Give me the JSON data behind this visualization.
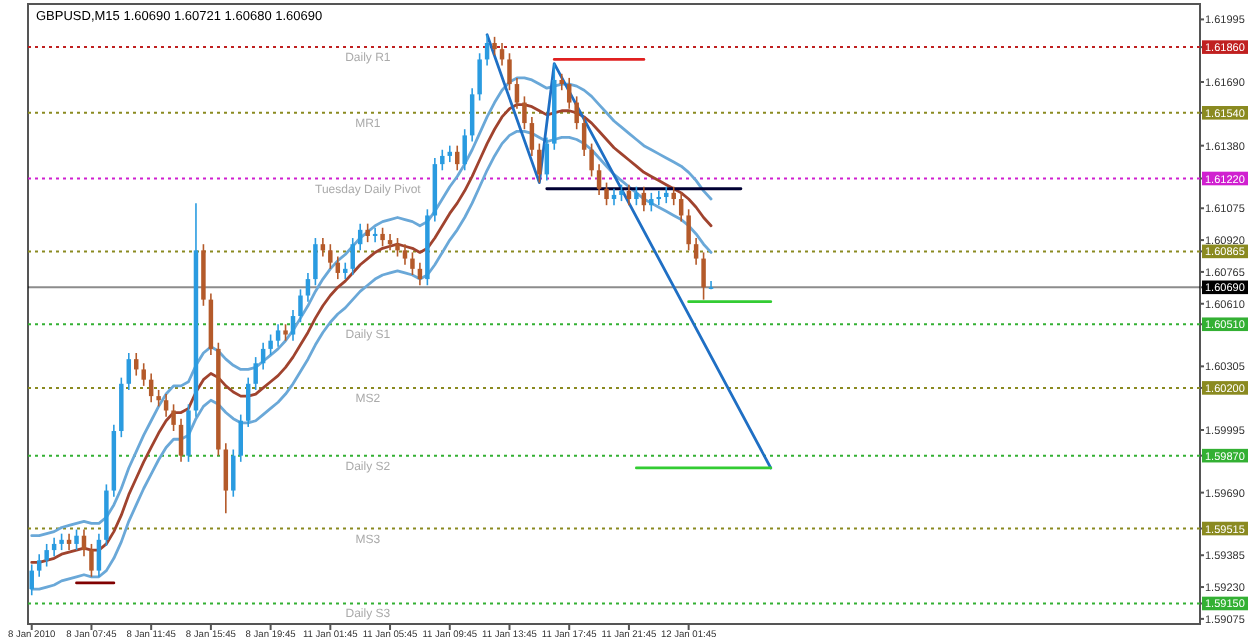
{
  "chart_data": {
    "type": "candlestick",
    "title": "GBPUSD,M15  1.60690 1.60721 1.60680 1.60690",
    "categories": [
      "8 Jan 2010",
      null,
      null,
      null,
      null,
      null,
      null,
      null,
      "8 Jan 07:45",
      null,
      null,
      null,
      null,
      null,
      null,
      null,
      "8 Jan 11:45",
      null,
      null,
      null,
      null,
      null,
      null,
      null,
      "8 Jan 15:45",
      null,
      null,
      null,
      null,
      null,
      null,
      null,
      "8 Jan 19:45",
      null,
      null,
      null,
      null,
      null,
      null,
      null,
      "11 Jan 01:45",
      null,
      null,
      null,
      null,
      null,
      null,
      null,
      "11 Jan 05:45",
      null,
      null,
      null,
      null,
      null,
      null,
      null,
      "11 Jan 09:45",
      null,
      null,
      null,
      null,
      null,
      null,
      null,
      "11 Jan 13:45",
      null,
      null,
      null,
      null,
      null,
      null,
      null,
      "11 Jan 17:45",
      null,
      null,
      null,
      null,
      null,
      null,
      null,
      "11 Jan 21:45",
      null,
      null,
      null,
      null,
      null,
      null,
      null,
      "12 Jan 01:45",
      null,
      null,
      null,
      null,
      null,
      null,
      null,
      null,
      null,
      null,
      null
    ],
    "ohlc": [
      [
        1.5922,
        1.5934,
        1.5919,
        1.5931
      ],
      [
        1.5931,
        1.5939,
        1.5928,
        1.5936
      ],
      [
        1.5936,
        1.5944,
        1.5933,
        1.5941
      ],
      [
        1.5941,
        1.5947,
        1.5938,
        1.5944
      ],
      [
        1.5944,
        1.5949,
        1.5941,
        1.5946
      ],
      [
        1.5946,
        1.5949,
        1.5941,
        1.5944
      ],
      [
        1.5944,
        1.5951,
        1.5941,
        1.5948
      ],
      [
        1.5948,
        1.5951,
        1.5938,
        1.5941
      ],
      [
        1.5941,
        1.5944,
        1.5928,
        1.5931
      ],
      [
        1.5931,
        1.5949,
        1.5928,
        1.5946
      ],
      [
        1.5946,
        1.5973,
        1.5943,
        1.597
      ],
      [
        1.597,
        1.6002,
        1.5967,
        1.5999
      ],
      [
        1.5999,
        1.6025,
        1.5996,
        1.6022
      ],
      [
        1.6022,
        1.6037,
        1.6019,
        1.6034
      ],
      [
        1.6034,
        1.6037,
        1.6026,
        1.6029
      ],
      [
        1.6029,
        1.6032,
        1.6021,
        1.6024
      ],
      [
        1.6024,
        1.6027,
        1.6013,
        1.6016
      ],
      [
        1.6016,
        1.6019,
        1.6011,
        1.6014
      ],
      [
        1.6014,
        1.6017,
        1.6006,
        1.6009
      ],
      [
        1.6009,
        1.6012,
        1.5999,
        1.6002
      ],
      [
        1.6002,
        1.6005,
        1.5984,
        1.5987
      ],
      [
        1.5987,
        1.6012,
        1.5984,
        1.6009
      ],
      [
        1.6009,
        1.611,
        1.6006,
        1.6087
      ],
      [
        1.6087,
        1.609,
        1.606,
        1.6063
      ],
      [
        1.6063,
        1.6066,
        1.6036,
        1.6039
      ],
      [
        1.6039,
        1.6042,
        1.5987,
        1.599
      ],
      [
        1.599,
        1.5993,
        1.5959,
        1.597
      ],
      [
        1.597,
        1.599,
        1.5967,
        1.5987
      ],
      [
        1.5987,
        1.6007,
        1.5984,
        1.6004
      ],
      [
        1.6004,
        1.6025,
        1.6001,
        1.6022
      ],
      [
        1.6022,
        1.6035,
        1.6019,
        1.6032
      ],
      [
        1.6032,
        1.6042,
        1.6029,
        1.6039
      ],
      [
        1.6039,
        1.6046,
        1.6036,
        1.6043
      ],
      [
        1.6043,
        1.6051,
        1.604,
        1.6048
      ],
      [
        1.6048,
        1.6051,
        1.6043,
        1.6046
      ],
      [
        1.6046,
        1.6058,
        1.6043,
        1.6055
      ],
      [
        1.6055,
        1.6068,
        1.6052,
        1.6065
      ],
      [
        1.6065,
        1.6076,
        1.6062,
        1.6073
      ],
      [
        1.6073,
        1.6093,
        1.607,
        1.609
      ],
      [
        1.609,
        1.6093,
        1.6084,
        1.6087
      ],
      [
        1.6087,
        1.609,
        1.6078,
        1.6081
      ],
      [
        1.6081,
        1.6084,
        1.6073,
        1.6076
      ],
      [
        1.6076,
        1.6081,
        1.6073,
        1.6078
      ],
      [
        1.6078,
        1.6093,
        1.6075,
        1.609
      ],
      [
        1.609,
        1.61,
        1.6087,
        1.6097
      ],
      [
        1.6097,
        1.61,
        1.6091,
        1.6094
      ],
      [
        1.6094,
        1.6098,
        1.6091,
        1.6095
      ],
      [
        1.6095,
        1.6098,
        1.6089,
        1.6092
      ],
      [
        1.6092,
        1.6095,
        1.6087,
        1.609
      ],
      [
        1.609,
        1.6093,
        1.6084,
        1.6087
      ],
      [
        1.6087,
        1.609,
        1.608,
        1.6083
      ],
      [
        1.6083,
        1.6086,
        1.6075,
        1.6078
      ],
      [
        1.6078,
        1.6081,
        1.607,
        1.6073
      ],
      [
        1.6073,
        1.6107,
        1.607,
        1.6104
      ],
      [
        1.6104,
        1.6132,
        1.6101,
        1.6129
      ],
      [
        1.6129,
        1.6136,
        1.6126,
        1.6133
      ],
      [
        1.6133,
        1.6138,
        1.613,
        1.6135
      ],
      [
        1.6135,
        1.6138,
        1.6126,
        1.6129
      ],
      [
        1.6129,
        1.6146,
        1.6126,
        1.6143
      ],
      [
        1.6143,
        1.6166,
        1.614,
        1.6163
      ],
      [
        1.6163,
        1.6183,
        1.616,
        1.618
      ],
      [
        1.618,
        1.6192,
        1.6177,
        1.6188
      ],
      [
        1.6188,
        1.6191,
        1.6182,
        1.6185
      ],
      [
        1.6185,
        1.6188,
        1.6177,
        1.618
      ],
      [
        1.618,
        1.6183,
        1.6165,
        1.6168
      ],
      [
        1.6168,
        1.6171,
        1.6156,
        1.6159
      ],
      [
        1.6159,
        1.6162,
        1.6146,
        1.6149
      ],
      [
        1.6149,
        1.6152,
        1.6133,
        1.6136
      ],
      [
        1.6136,
        1.6139,
        1.612,
        1.6124
      ],
      [
        1.6124,
        1.6142,
        1.6121,
        1.6139
      ],
      [
        1.6139,
        1.6178,
        1.6136,
        1.617
      ],
      [
        1.617,
        1.6173,
        1.6165,
        1.6168
      ],
      [
        1.6168,
        1.6171,
        1.6156,
        1.6159
      ],
      [
        1.6159,
        1.6162,
        1.6146,
        1.6149
      ],
      [
        1.6149,
        1.6152,
        1.6133,
        1.6136
      ],
      [
        1.6136,
        1.6139,
        1.6123,
        1.6126
      ],
      [
        1.6126,
        1.6129,
        1.6114,
        1.6117
      ],
      [
        1.6117,
        1.612,
        1.6109,
        1.6112
      ],
      [
        1.6112,
        1.6117,
        1.6109,
        1.6114
      ],
      [
        1.6114,
        1.6119,
        1.6111,
        1.6116
      ],
      [
        1.6116,
        1.6119,
        1.6109,
        1.6112
      ],
      [
        1.6112,
        1.6118,
        1.6109,
        1.6115
      ],
      [
        1.6115,
        1.6118,
        1.6106,
        1.6109
      ],
      [
        1.6109,
        1.6115,
        1.6106,
        1.6112
      ],
      [
        1.6112,
        1.6116,
        1.6109,
        1.6113
      ],
      [
        1.6113,
        1.6118,
        1.611,
        1.6115
      ],
      [
        1.6115,
        1.6118,
        1.6109,
        1.6112
      ],
      [
        1.6112,
        1.6115,
        1.6101,
        1.6104
      ],
      [
        1.6104,
        1.6107,
        1.6087,
        1.609
      ],
      [
        1.609,
        1.6093,
        1.608,
        1.6083
      ],
      [
        1.6083,
        1.6086,
        1.6063,
        1.6069
      ],
      [
        1.6069,
        1.60721,
        1.6068,
        1.6069
      ],
      null,
      null,
      null,
      null,
      null,
      null,
      null,
      null
    ],
    "series": [
      {
        "type": "line",
        "color": "#6aa8d8",
        "values": [
          1.5948,
          1.5948,
          1.5949,
          1.595,
          1.5952,
          1.5953,
          1.5954,
          1.5955,
          1.5954,
          1.5954,
          1.5957,
          1.5963,
          1.5971,
          1.5981,
          1.5989,
          1.5997,
          1.6004,
          1.6011,
          1.6017,
          1.6021,
          1.6021,
          1.6023,
          1.6031,
          1.6037,
          1.604,
          1.6038,
          1.6034,
          1.6031,
          1.6029,
          1.6029,
          1.603,
          1.6033,
          1.6036,
          1.6039,
          1.6043,
          1.6048,
          1.6054,
          1.606,
          1.6067,
          1.6073,
          1.6078,
          1.6082,
          1.6085,
          1.6089,
          1.6093,
          1.6096,
          1.6099,
          1.6101,
          1.6102,
          1.6103,
          1.6102,
          1.6101,
          1.6099,
          1.6101,
          1.6106,
          1.6112,
          1.6118,
          1.6123,
          1.6129,
          1.6136,
          1.6144,
          1.6152,
          1.6159,
          1.6165,
          1.6169,
          1.6171,
          1.6171,
          1.617,
          1.6168,
          1.6166,
          1.6167,
          1.6168,
          1.6168,
          1.6167,
          1.6165,
          1.6162,
          1.6158,
          1.6154,
          1.615,
          1.6147,
          1.6144,
          1.6141,
          1.6138,
          1.6136,
          1.6134,
          1.6132,
          1.613,
          1.6128,
          1.6125,
          1.6121,
          1.6116,
          1.6112,
          null,
          null,
          null,
          null,
          null,
          null,
          null,
          null
        ]
      },
      {
        "type": "line",
        "color": "#a0432e",
        "values": [
          1.5935,
          1.5935,
          1.5936,
          1.5937,
          1.5939,
          1.594,
          1.5941,
          1.5942,
          1.5941,
          1.5941,
          1.5944,
          1.595,
          1.5958,
          1.5968,
          1.5976,
          1.5984,
          1.5991,
          1.5998,
          1.6004,
          1.6008,
          1.6008,
          1.601,
          1.6018,
          1.6024,
          1.6027,
          1.6025,
          1.6021,
          1.6018,
          1.6016,
          1.6016,
          1.6017,
          1.602,
          1.6023,
          1.6026,
          1.603,
          1.6035,
          1.6041,
          1.6047,
          1.6054,
          1.606,
          1.6065,
          1.6069,
          1.6072,
          1.6076,
          1.608,
          1.6083,
          1.6086,
          1.6088,
          1.6089,
          1.609,
          1.6089,
          1.6088,
          1.6086,
          1.6088,
          1.6093,
          1.6099,
          1.6105,
          1.611,
          1.6116,
          1.6123,
          1.6131,
          1.6139,
          1.6146,
          1.6152,
          1.6156,
          1.6158,
          1.6158,
          1.6157,
          1.6155,
          1.6153,
          1.6154,
          1.6155,
          1.6155,
          1.6154,
          1.6152,
          1.6149,
          1.6145,
          1.6141,
          1.6137,
          1.6134,
          1.6131,
          1.6128,
          1.6125,
          1.6123,
          1.6121,
          1.6119,
          1.6117,
          1.6115,
          1.6112,
          1.6108,
          1.6103,
          1.6099,
          null,
          null,
          null,
          null,
          null,
          null,
          null,
          null
        ]
      },
      {
        "type": "line",
        "color": "#6aa8d8",
        "values": [
          1.5922,
          1.5922,
          1.5923,
          1.5924,
          1.5926,
          1.5927,
          1.5928,
          1.5929,
          1.5928,
          1.5928,
          1.5931,
          1.5937,
          1.5945,
          1.5955,
          1.5963,
          1.5971,
          1.5978,
          1.5985,
          1.5991,
          1.5995,
          1.5995,
          1.5997,
          1.6005,
          1.6011,
          1.6014,
          1.6012,
          1.6008,
          1.6005,
          1.6003,
          1.6003,
          1.6004,
          1.6007,
          1.601,
          1.6013,
          1.6017,
          1.6022,
          1.6028,
          1.6034,
          1.6041,
          1.6047,
          1.6052,
          1.6056,
          1.6059,
          1.6063,
          1.6067,
          1.607,
          1.6073,
          1.6075,
          1.6076,
          1.6077,
          1.6076,
          1.6075,
          1.6073,
          1.6075,
          1.608,
          1.6086,
          1.6092,
          1.6097,
          1.6103,
          1.611,
          1.6118,
          1.6126,
          1.6133,
          1.6139,
          1.6143,
          1.6145,
          1.6145,
          1.6144,
          1.6142,
          1.614,
          1.6141,
          1.6142,
          1.6142,
          1.6141,
          1.6139,
          1.6136,
          1.6132,
          1.6128,
          1.6124,
          1.6121,
          1.6118,
          1.6115,
          1.6112,
          1.611,
          1.6108,
          1.6106,
          1.6104,
          1.6102,
          1.6099,
          1.6095,
          1.609,
          1.6086,
          null,
          null,
          null,
          null,
          null,
          null,
          null,
          null
        ]
      },
      {
        "type": "line",
        "color": "#1f6fc4",
        "values": [
          null,
          null,
          null,
          null,
          null,
          null,
          null,
          null,
          null,
          null,
          null,
          null,
          null,
          null,
          null,
          null,
          null,
          null,
          null,
          null,
          null,
          null,
          null,
          null,
          null,
          null,
          null,
          null,
          null,
          null,
          null,
          null,
          null,
          null,
          null,
          null,
          null,
          null,
          null,
          null,
          null,
          null,
          null,
          null,
          null,
          null,
          null,
          null,
          null,
          null,
          null,
          null,
          null,
          null,
          null,
          null,
          null,
          null,
          null,
          null,
          null,
          1.6192,
          null,
          null,
          null,
          null,
          null,
          null,
          1.612,
          null,
          1.6178,
          null,
          null,
          null,
          null,
          null,
          null,
          null,
          null,
          null,
          null,
          null,
          null,
          null,
          null,
          null,
          null,
          null,
          null,
          null,
          null,
          null,
          null,
          null,
          null,
          null,
          null,
          null,
          null,
          1.5981
        ]
      },
      {
        "type": "line",
        "color": "#e02020",
        "values": [
          null,
          null,
          null,
          null,
          null,
          null,
          null,
          null,
          null,
          null,
          null,
          null,
          null,
          null,
          null,
          null,
          null,
          null,
          null,
          null,
          null,
          null,
          null,
          null,
          null,
          null,
          null,
          null,
          null,
          null,
          null,
          null,
          null,
          null,
          null,
          null,
          null,
          null,
          null,
          null,
          null,
          null,
          null,
          null,
          null,
          null,
          null,
          null,
          null,
          null,
          null,
          null,
          null,
          null,
          null,
          null,
          null,
          null,
          null,
          null,
          null,
          null,
          null,
          null,
          null,
          null,
          null,
          null,
          null,
          null,
          1.618,
          1.618,
          1.618,
          1.618,
          1.618,
          1.618,
          1.618,
          1.618,
          1.618,
          1.618,
          1.618,
          1.618,
          1.618,
          null,
          null,
          null,
          null,
          null,
          null,
          null,
          null,
          null,
          null,
          null,
          null,
          null,
          null,
          null,
          null,
          null
        ]
      },
      {
        "type": "line",
        "color": "#000033",
        "values": [
          null,
          null,
          null,
          null,
          null,
          null,
          null,
          null,
          null,
          null,
          null,
          null,
          null,
          null,
          null,
          null,
          null,
          null,
          null,
          null,
          null,
          null,
          null,
          null,
          null,
          null,
          null,
          null,
          null,
          null,
          null,
          null,
          null,
          null,
          null,
          null,
          null,
          null,
          null,
          null,
          null,
          null,
          null,
          null,
          null,
          null,
          null,
          null,
          null,
          null,
          null,
          null,
          null,
          null,
          null,
          null,
          null,
          null,
          null,
          null,
          null,
          null,
          null,
          null,
          null,
          null,
          null,
          null,
          null,
          1.6117,
          1.6117,
          1.6117,
          1.6117,
          1.6117,
          1.6117,
          1.6117,
          1.6117,
          1.6117,
          1.6117,
          1.6117,
          1.6117,
          1.6117,
          1.6117,
          1.6117,
          1.6117,
          1.6117,
          1.6117,
          1.6117,
          1.6117,
          1.6117,
          1.6117,
          1.6117,
          1.6117,
          1.6117,
          1.6117,
          1.6117,
          null,
          null,
          null,
          null
        ]
      },
      {
        "type": "line",
        "color": "#33cc33",
        "values": [
          null,
          null,
          null,
          null,
          null,
          null,
          null,
          null,
          null,
          null,
          null,
          null,
          null,
          null,
          null,
          null,
          null,
          null,
          null,
          null,
          null,
          null,
          null,
          null,
          null,
          null,
          null,
          null,
          null,
          null,
          null,
          null,
          null,
          null,
          null,
          null,
          null,
          null,
          null,
          null,
          null,
          null,
          null,
          null,
          null,
          null,
          null,
          null,
          null,
          null,
          null,
          null,
          null,
          null,
          null,
          null,
          null,
          null,
          null,
          null,
          null,
          null,
          null,
          null,
          null,
          null,
          null,
          null,
          null,
          null,
          null,
          null,
          null,
          null,
          null,
          null,
          null,
          null,
          null,
          null,
          null,
          null,
          null,
          null,
          null,
          null,
          null,
          null,
          1.6062,
          1.6062,
          1.6062,
          1.6062,
          1.6062,
          1.6062,
          1.6062,
          1.6062,
          1.6062,
          1.6062,
          1.6062,
          1.6062
        ]
      },
      {
        "type": "line",
        "color": "#33cc33",
        "values": [
          null,
          null,
          null,
          null,
          null,
          null,
          null,
          null,
          null,
          null,
          null,
          null,
          null,
          null,
          null,
          null,
          null,
          null,
          null,
          null,
          null,
          null,
          null,
          null,
          null,
          null,
          null,
          null,
          null,
          null,
          null,
          null,
          null,
          null,
          null,
          null,
          null,
          null,
          null,
          null,
          null,
          null,
          null,
          null,
          null,
          null,
          null,
          null,
          null,
          null,
          null,
          null,
          null,
          null,
          null,
          null,
          null,
          null,
          null,
          null,
          null,
          null,
          null,
          null,
          null,
          null,
          null,
          null,
          null,
          null,
          null,
          null,
          null,
          null,
          null,
          null,
          null,
          null,
          null,
          null,
          null,
          1.5981,
          1.5981,
          1.5981,
          1.5981,
          1.5981,
          1.5981,
          1.5981,
          1.5981,
          1.5981,
          1.5981,
          1.5981,
          1.5981,
          1.5981,
          1.5981,
          1.5981,
          1.5981,
          1.5981,
          1.5981,
          1.5981
        ]
      },
      {
        "type": "line",
        "color": "#800000",
        "values": [
          null,
          null,
          null,
          null,
          null,
          null,
          1.5925,
          1.5925,
          1.5925,
          1.5925,
          1.5925,
          1.5925,
          null,
          null,
          null,
          null,
          null,
          null,
          null,
          null,
          null,
          null,
          null,
          null,
          null,
          null,
          null,
          null,
          null,
          null,
          null,
          null,
          null,
          null,
          null,
          null,
          null,
          null,
          null,
          null,
          null,
          null,
          null,
          null,
          null,
          null,
          null,
          null,
          null,
          null,
          null,
          null,
          null,
          null,
          null,
          null,
          null,
          null,
          null,
          null,
          null,
          null,
          null,
          null,
          null,
          null,
          null,
          null,
          null,
          null,
          null,
          null,
          null,
          null,
          null,
          null,
          null,
          null,
          null,
          null,
          null,
          null,
          null,
          null,
          null,
          null,
          null,
          null,
          null,
          null,
          null,
          null,
          null,
          null,
          null,
          null,
          null,
          null,
          null,
          null
        ]
      }
    ],
    "ylim": [
      1.5905,
      1.6207
    ],
    "yticks": [
      {
        "value": 1.61995,
        "label": "1.61995"
      },
      {
        "value": 1.6169,
        "label": "1.61690"
      },
      {
        "value": 1.6138,
        "label": "1.61380"
      },
      {
        "value": 1.61075,
        "label": "1.61075"
      },
      {
        "value": 1.6092,
        "label": "1.60920"
      },
      {
        "value": 1.60765,
        "label": "1.60765"
      },
      {
        "value": 1.6061,
        "label": "1.60610"
      },
      {
        "value": 1.60305,
        "label": "1.60305"
      },
      {
        "value": 1.59995,
        "label": "1.59995"
      },
      {
        "value": 1.5969,
        "label": "1.59690"
      },
      {
        "value": 1.59385,
        "label": "1.59385"
      },
      {
        "value": 1.5923,
        "label": "1.59230"
      },
      {
        "value": 1.59075,
        "label": "1.59075"
      },
      {
        "value": 1.6186,
        "label": "1.61860"
      },
      {
        "value": 1.6154,
        "label": "1.61540"
      },
      {
        "value": 1.6122,
        "label": "1.61220"
      },
      {
        "value": 1.60865,
        "label": "1.60865"
      },
      {
        "value": 1.6069,
        "label": "1.60690"
      },
      {
        "value": 1.6051,
        "label": "1.60510"
      },
      {
        "value": 1.602,
        "label": "1.60200"
      },
      {
        "value": 1.5987,
        "label": "1.59870"
      },
      {
        "value": 1.59515,
        "label": "1.59515"
      },
      {
        "value": 1.5915,
        "label": "1.59150"
      }
    ],
    "ref_lines": [
      {
        "axis": "y",
        "value": 1.6186,
        "label": "Daily R1",
        "color": "#c02020",
        "line_style": "dotted"
      },
      {
        "axis": "y",
        "value": 1.6154,
        "label": "MR1",
        "color": "#8a8a20",
        "line_style": "dotted"
      },
      {
        "axis": "y",
        "value": 1.6122,
        "label": "Tuesday  Daily Pivot",
        "color": "#d020d0",
        "line_style": "dotted"
      },
      {
        "axis": "y",
        "value": 1.60865,
        "label": null,
        "color": "#8a8a20",
        "line_style": "dotted"
      },
      {
        "axis": "y",
        "value": 1.6069,
        "label": null,
        "color": "#000000",
        "line_style": "solid"
      },
      {
        "axis": "y",
        "value": 1.6051,
        "label": "Daily S1",
        "color": "#33b033",
        "line_style": "dotted"
      },
      {
        "axis": "y",
        "value": 1.602,
        "label": "MS2",
        "color": "#8a8a20",
        "line_style": "dotted"
      },
      {
        "axis": "y",
        "value": 1.5987,
        "label": "Daily S2",
        "color": "#33b033",
        "line_style": "dotted"
      },
      {
        "axis": "y",
        "value": 1.59515,
        "label": "MS3",
        "color": "#8a8a20",
        "line_style": "dotted"
      },
      {
        "axis": "y",
        "value": 1.5915,
        "label": "Daily S3",
        "color": "#33b033",
        "line_style": "dotted"
      }
    ]
  }
}
